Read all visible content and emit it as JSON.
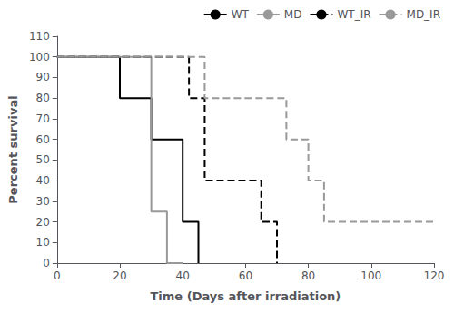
{
  "chart_data": {
    "type": "line",
    "xlabel": "Time (Days after irradiation)",
    "ylabel": "Percent survival",
    "xlim": [
      0,
      120
    ],
    "ylim": [
      0,
      110
    ],
    "xticks": [
      0,
      20,
      40,
      60,
      80,
      100,
      120
    ],
    "yticks": [
      0,
      10,
      20,
      30,
      40,
      50,
      60,
      70,
      80,
      90,
      100,
      110
    ],
    "grid": false,
    "legend": "upper right",
    "series": [
      {
        "name": "WT",
        "color": "#000000",
        "line_style": "solid",
        "x": [
          0,
          20,
          20,
          30,
          30,
          40,
          40,
          45,
          45
        ],
        "values": [
          100,
          100,
          80,
          80,
          60,
          60,
          20,
          20,
          0
        ]
      },
      {
        "name": "MD",
        "color": "#999999",
        "line_style": "solid",
        "x": [
          0,
          30,
          30,
          35,
          35,
          40,
          40
        ],
        "values": [
          100,
          100,
          25,
          25,
          0,
          0,
          0
        ]
      },
      {
        "name": "WT_IR",
        "color": "#000000",
        "line_style": "dashed",
        "x": [
          0,
          42,
          42,
          47,
          47,
          65,
          65,
          70,
          70
        ],
        "values": [
          100,
          100,
          80,
          80,
          40,
          40,
          20,
          20,
          0
        ]
      },
      {
        "name": "MD_IR",
        "color": "#999999",
        "line_style": "dashed",
        "x": [
          0,
          47,
          47,
          73,
          73,
          80,
          80,
          85,
          85,
          115,
          115,
          120
        ],
        "values": [
          100,
          100,
          80,
          80,
          60,
          60,
          40,
          40,
          20,
          20,
          20,
          20
        ]
      }
    ]
  }
}
